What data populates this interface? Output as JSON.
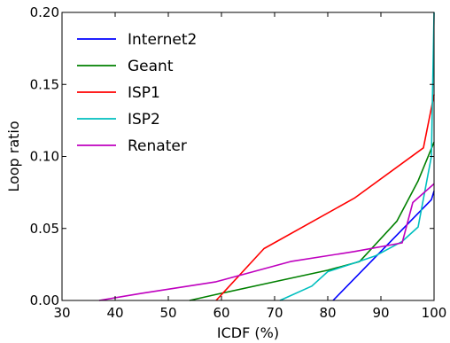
{
  "chart_data": {
    "type": "line",
    "title": "",
    "xlabel": "ICDF (%)",
    "ylabel": "Loop ratio",
    "xlim": [
      30,
      100
    ],
    "ylim": [
      0.0,
      0.2
    ],
    "xticks": [
      "30",
      "40",
      "50",
      "60",
      "70",
      "80",
      "90",
      "100"
    ],
    "yticks": [
      "0.00",
      "0.05",
      "0.10",
      "0.15",
      "0.20"
    ],
    "grid": false,
    "legend_position": "top-left",
    "series": [
      {
        "name": "Internet2",
        "color": "#0000ff",
        "x": [
          81,
          99.5,
          100
        ],
        "y": [
          0.0,
          0.07,
          0.076
        ]
      },
      {
        "name": "Geant",
        "color": "#008000",
        "x": [
          54,
          60,
          70,
          80,
          86,
          93,
          97,
          100
        ],
        "y": [
          0.0,
          0.005,
          0.013,
          0.021,
          0.027,
          0.055,
          0.083,
          0.11
        ]
      },
      {
        "name": "ISP1",
        "color": "#ff0000",
        "x": [
          59,
          68,
          85,
          98,
          100
        ],
        "y": [
          0.0,
          0.036,
          0.071,
          0.106,
          0.143
        ]
      },
      {
        "name": "ISP2",
        "color": "#00bfbf",
        "x": [
          71,
          77,
          80,
          85,
          89,
          94,
          97,
          99.5,
          100
        ],
        "y": [
          0.0,
          0.01,
          0.02,
          0.026,
          0.031,
          0.041,
          0.051,
          0.1,
          0.2
        ]
      },
      {
        "name": "Renater",
        "color": "#bf00bf",
        "x": [
          37,
          45,
          59,
          73,
          85,
          94,
          96,
          100
        ],
        "y": [
          0.0,
          0.005,
          0.013,
          0.027,
          0.034,
          0.04,
          0.068,
          0.081
        ]
      }
    ]
  }
}
